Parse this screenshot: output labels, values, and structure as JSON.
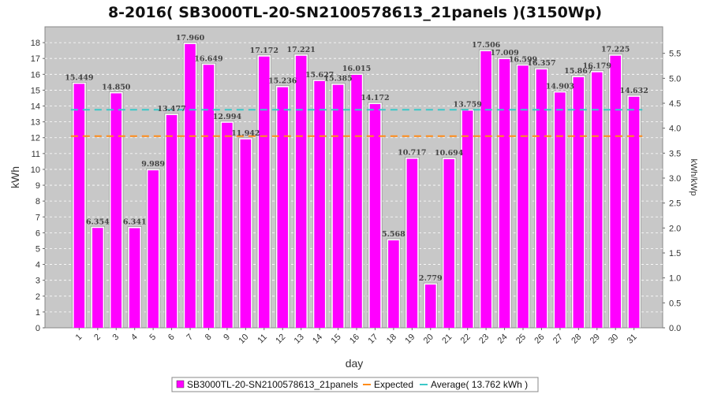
{
  "chart_data": {
    "type": "bar",
    "title": "8-2016( SB3000TL-20-SN2100578613_21panels )(3150Wp)",
    "xlabel": "day",
    "ylabel": "kWh",
    "ylabel_right": "kWh/kWp",
    "categories": [
      "1",
      "2",
      "3",
      "4",
      "5",
      "6",
      "7",
      "8",
      "9",
      "10",
      "11",
      "12",
      "13",
      "14",
      "15",
      "16",
      "17",
      "18",
      "19",
      "20",
      "21",
      "22",
      "23",
      "24",
      "25",
      "26",
      "27",
      "28",
      "29",
      "30",
      "31"
    ],
    "series": [
      {
        "name": "SB3000TL-20-SN2100578613_21panels",
        "color": "#ff00ff",
        "values": [
          15.449,
          6.354,
          14.85,
          6.341,
          9.989,
          13.477,
          17.96,
          16.649,
          12.994,
          11.942,
          17.172,
          15.236,
          17.221,
          15.627,
          15.385,
          16.015,
          14.172,
          5.568,
          10.717,
          2.779,
          10.694,
          13.759,
          17.506,
          17.009,
          16.599,
          16.357,
          14.903,
          15.867,
          16.179,
          17.225,
          14.632
        ],
        "value_labels": [
          "15.449",
          "6.354",
          "14.850",
          "6.341",
          "9.989",
          "13.477",
          "17.960",
          "16.649",
          "12.994",
          "11.942",
          "17.172",
          "15.236",
          "17.221",
          "15.627",
          "15.385",
          "16.015",
          "14.172",
          "5.568",
          "10.717",
          "2.779",
          "10.694",
          "13.759",
          "17.506",
          "17.009",
          "16.599",
          "16.357",
          "14.903",
          "15.867",
          "16.179",
          "17.225",
          "14.632"
        ]
      }
    ],
    "expected": {
      "name": "Expected",
      "value": 12.1,
      "color": "#ff8c1a"
    },
    "average": {
      "name": "Average( 13.762 kWh )",
      "value": 13.762,
      "color": "#3cc8c8"
    },
    "ylim": [
      0,
      19
    ],
    "yticks": [
      "0",
      "1",
      "2",
      "3",
      "4",
      "5",
      "6",
      "7",
      "8",
      "9",
      "10",
      "11",
      "12",
      "13",
      "14",
      "15",
      "16",
      "17",
      "18"
    ],
    "y2lim": [
      0,
      6.032
    ],
    "y2ticks": [
      "0.0",
      "0.5",
      "1.0",
      "1.5",
      "2.0",
      "2.5",
      "3.0",
      "3.5",
      "4.0",
      "4.5",
      "5.0",
      "5.5"
    ],
    "grid": true,
    "legend_position": "bottom",
    "colors": {
      "plot_bg": "#c8c8c8",
      "grid": "#ffffff"
    }
  }
}
